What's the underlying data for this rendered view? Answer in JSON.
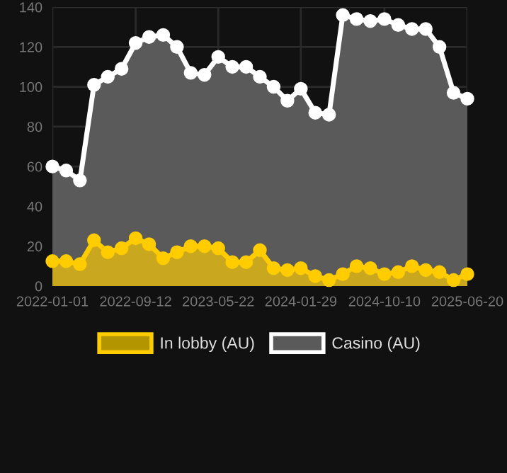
{
  "chart_data": {
    "type": "area",
    "x": [
      "2022-01-01",
      "2022-02-12",
      "2022-03-26",
      "2022-05-08",
      "2022-06-19",
      "2022-07-31",
      "2022-09-12",
      "2022-10-23",
      "2022-12-05",
      "2023-01-16",
      "2023-02-27",
      "2023-04-10",
      "2023-05-22",
      "2023-07-04",
      "2023-08-15",
      "2023-09-26",
      "2023-11-07",
      "2023-12-19",
      "2024-01-29",
      "2024-03-13",
      "2024-04-24",
      "2024-06-05",
      "2024-07-17",
      "2024-08-28",
      "2024-10-10",
      "2024-11-21",
      "2025-01-02",
      "2025-02-13",
      "2025-03-27",
      "2025-05-09",
      "2025-06-20"
    ],
    "series": [
      {
        "name": "Casino (AU)",
        "color": "#ffffff",
        "values": [
          60,
          58,
          53,
          101,
          105,
          109,
          122,
          125,
          126,
          120,
          107,
          106,
          115,
          110,
          110,
          105,
          100,
          93,
          99,
          87,
          86,
          136,
          134,
          133,
          134,
          131,
          129,
          129,
          120,
          97,
          94
        ]
      },
      {
        "name": "In lobby (AU)",
        "color": "#ffcc00",
        "values": [
          12.5,
          12.5,
          11,
          23,
          17,
          19,
          24,
          21,
          14,
          17,
          20,
          20,
          19,
          12,
          12,
          18,
          9,
          8,
          9,
          5,
          3,
          6,
          10,
          9,
          6,
          7,
          10,
          8,
          7,
          3,
          6
        ]
      }
    ],
    "ylim": [
      0,
      140
    ],
    "yticks": [
      0,
      20,
      40,
      60,
      80,
      100,
      120,
      140
    ],
    "xlim": [
      "2022-01-01",
      "2025-06-20"
    ],
    "xticks": [
      "2022-01-01",
      "2022-09-12",
      "2023-05-22",
      "2024-01-29",
      "2024-10-10",
      "2025-06-20"
    ],
    "grid": true,
    "legend": "bottom",
    "marker": "circle",
    "line_style": "solid"
  }
}
